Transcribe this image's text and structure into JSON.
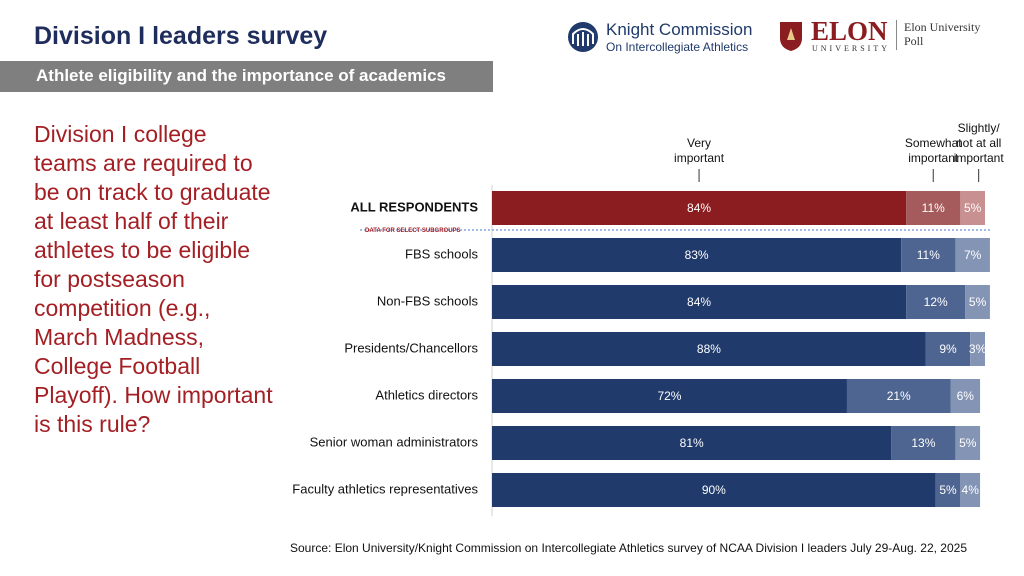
{
  "header": {
    "title": "Division I leaders survey",
    "subtitle": "Athlete eligibility and the importance of academics"
  },
  "logos": {
    "knight_line1": "Knight Commission",
    "knight_line2": "On Intercollegiate Athletics",
    "elon": "ELON",
    "elon_sub": "UNIVERSITY",
    "poll_line1": "Elon University",
    "poll_line2": "Poll"
  },
  "question": "Division I college teams are required to be on track to graduate at least half of their athletes to be eligible for postseason competition (e.g., March Madness, College Football Playoff). How important is this rule?",
  "chart_data": {
    "type": "stacked_bar",
    "orientation": "horizontal",
    "categories": [
      "ALL RESPONDENTS",
      "FBS schools",
      "Non-FBS schools",
      "Presidents/Chancellors",
      "Athletics directors",
      "Senior woman administrators",
      "Faculty athletics representatives"
    ],
    "annotation": "DATA FOR SELECT SUBGROUPS",
    "series": [
      {
        "name": "Very important",
        "colors": [
          "#8b1c1f",
          "#1f3a6b",
          "#1f3a6b",
          "#1f3a6b",
          "#1f3a6b",
          "#1f3a6b",
          "#1f3a6b"
        ],
        "values": [
          84,
          83,
          84,
          88,
          72,
          81,
          90
        ],
        "value_labels": [
          "84%",
          "83%",
          "84%",
          "88%",
          "72%",
          "81%",
          "90%"
        ]
      },
      {
        "name": "Somewhat important",
        "colors": [
          "#a55a5c",
          "#4f6591",
          "#4f6591",
          "#4f6591",
          "#4f6591",
          "#4f6591",
          "#4f6591"
        ],
        "values": [
          11,
          11,
          12,
          9,
          21,
          13,
          5
        ],
        "value_labels": [
          "11%",
          "11%",
          "12%",
          "9%",
          "21%",
          "13%",
          "5%"
        ]
      },
      {
        "name": "Slightly/ not at all important",
        "colors": [
          "#c99091",
          "#8494b5",
          "#8494b5",
          "#8494b5",
          "#8494b5",
          "#8494b5",
          "#8494b5"
        ],
        "values": [
          5,
          7,
          5,
          3,
          6,
          5,
          4
        ],
        "value_labels": [
          "5%",
          "7%",
          "5%",
          "3%",
          "6%",
          "5%",
          "4%"
        ]
      }
    ]
  },
  "source": "Source: Elon University/Knight Commission on Intercollegiate Athletics survey of NCAA Division I leaders July 29-Aug. 22, 2025"
}
